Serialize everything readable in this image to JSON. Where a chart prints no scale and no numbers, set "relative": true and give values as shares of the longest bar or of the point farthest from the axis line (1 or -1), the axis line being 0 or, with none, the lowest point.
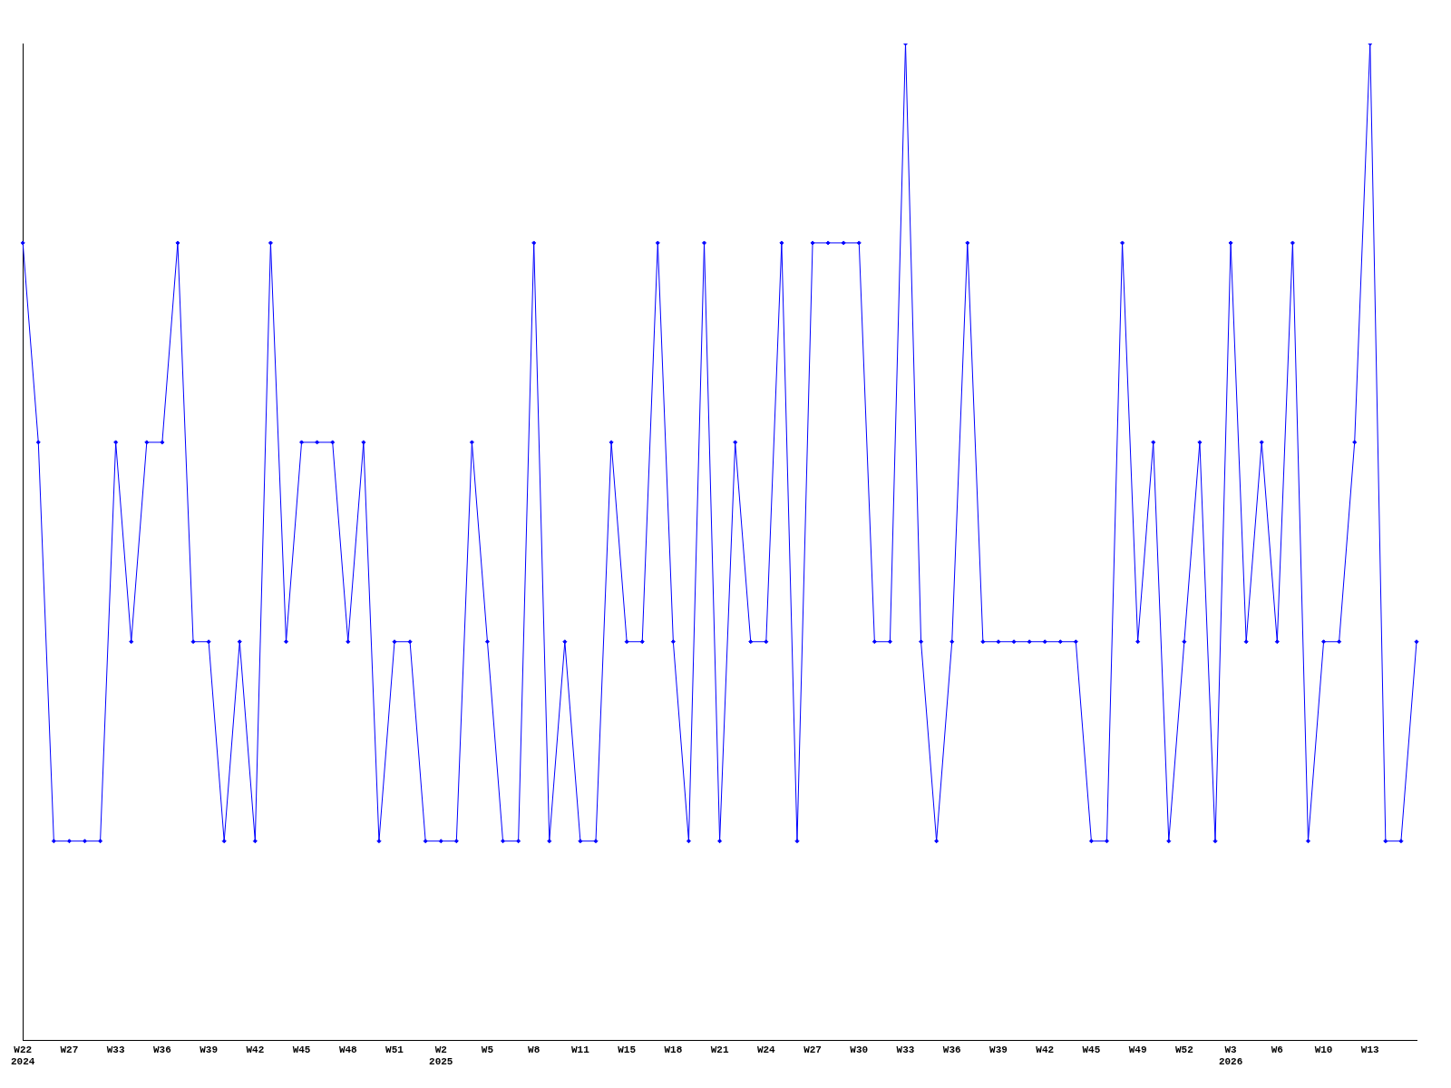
{
  "chart_data": {
    "type": "line",
    "relative": true,
    "color": "#0000ff",
    "marker": "diamond",
    "line_style": "solid",
    "grid": false,
    "legend": false,
    "categories": [
      "W22\n2024",
      null,
      null,
      "W27",
      null,
      null,
      "W33",
      null,
      null,
      "W36",
      null,
      null,
      "W39",
      null,
      null,
      "W42",
      null,
      null,
      "W45",
      null,
      null,
      "W48",
      null,
      null,
      "W51",
      null,
      null,
      "W2\n2025",
      null,
      null,
      "W5",
      null,
      null,
      "W8",
      null,
      null,
      "W11",
      null,
      null,
      "W15",
      null,
      null,
      "W18",
      null,
      null,
      "W21",
      null,
      null,
      "W24",
      null,
      null,
      "W27",
      null,
      null,
      "W30",
      null,
      null,
      "W33",
      null,
      null,
      "W36",
      null,
      null,
      "W39",
      null,
      null,
      "W42",
      null,
      null,
      "W45",
      null,
      null,
      "W49",
      null,
      null,
      "W52",
      null,
      null,
      "W3\n2026",
      null,
      null,
      "W6",
      null,
      null,
      "W10",
      null,
      null,
      "W13",
      null,
      null,
      null
    ],
    "values": [
      0.8,
      0.6,
      0.2,
      0.2,
      0.2,
      0.2,
      0.6,
      0.4,
      0.6,
      0.6,
      0.8,
      0.4,
      0.4,
      0.2,
      0.4,
      0.2,
      0.8,
      0.4,
      0.6,
      0.6,
      0.6,
      0.4,
      0.6,
      0.2,
      0.4,
      0.4,
      0.2,
      0.2,
      0.2,
      0.6,
      0.4,
      0.2,
      0.2,
      0.8,
      0.2,
      0.4,
      0.2,
      0.2,
      0.6,
      0.4,
      0.4,
      0.8,
      0.4,
      0.2,
      0.8,
      0.2,
      0.6,
      0.4,
      0.4,
      0.8,
      0.2,
      0.8,
      0.8,
      0.8,
      0.8,
      0.4,
      0.4,
      1.0,
      0.4,
      0.2,
      0.4,
      0.8,
      0.4,
      0.4,
      0.4,
      0.4,
      0.4,
      0.4,
      0.4,
      0.2,
      0.2,
      0.8,
      0.4,
      0.6,
      0.2,
      0.4,
      0.6,
      0.2,
      0.8,
      0.4,
      0.6,
      0.4,
      0.8,
      0.2,
      0.4,
      0.4,
      0.6,
      1.0,
      0.2,
      0.2,
      0.4
    ]
  }
}
